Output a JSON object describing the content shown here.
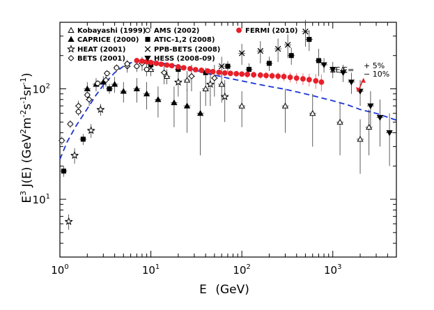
{
  "chart_data": {
    "type": "scatter",
    "x_scale": "log",
    "y_scale": "log",
    "xlim": [
      1,
      5000
    ],
    "ylim": [
      3,
      400
    ],
    "xlabel_main": "E",
    "xlabel_unit": "(GeV)",
    "ylabel_parts": [
      "E",
      "3",
      " J(E) (GeV",
      "2",
      "m",
      "-2",
      "s",
      "-1",
      "sr",
      "-1",
      ")"
    ],
    "x_ticks": [
      {
        "value": 1,
        "base": "10",
        "exp": "0"
      },
      {
        "value": 10,
        "base": "10",
        "exp": "1"
      },
      {
        "value": 100,
        "base": "10",
        "exp": "2"
      },
      {
        "value": 1000,
        "base": "10",
        "exp": "3"
      }
    ],
    "y_ticks": [
      {
        "value": 10,
        "base": "10",
        "exp": "1"
      },
      {
        "value": 100,
        "base": "10",
        "exp": "2"
      }
    ],
    "annotation": {
      "lhs": "ΔE/E=",
      "plus": "+ 5%",
      "minus": "− 10%"
    },
    "model_curve": {
      "name": "model",
      "color": "#1a33d6",
      "x": [
        1,
        1.2,
        1.5,
        2,
        2.5,
        3,
        4,
        5,
        6,
        8,
        10,
        15,
        20,
        30,
        50,
        70,
        100,
        150,
        200,
        300,
        500,
        700,
        1000,
        1500,
        2000,
        3000,
        5000
      ],
      "y": [
        23,
        33,
        46,
        66,
        88,
        108,
        140,
        160,
        172,
        180,
        178,
        168,
        160,
        148,
        133,
        125,
        118,
        110,
        105,
        99,
        90,
        84,
        78,
        71,
        65,
        60,
        52
      ]
    },
    "series": [
      {
        "name": "Kobayashi (1999)",
        "symbol": "triangle-open",
        "color": "#000000",
        "x": [
          10,
          15,
          25,
          40,
          60,
          100,
          300,
          600,
          1200,
          2000,
          2500
        ],
        "y": [
          150,
          130,
          120,
          100,
          110,
          70,
          70,
          60,
          50,
          35,
          45
        ],
        "err": [
          20,
          20,
          25,
          30,
          35,
          25,
          30,
          30,
          25,
          18,
          20
        ]
      },
      {
        "name": "CAPRICE (2000)",
        "symbol": "triangle-filled",
        "color": "#000000",
        "x": [
          2,
          2.5,
          3,
          4,
          5,
          7,
          9,
          12,
          18,
          25,
          35
        ],
        "y": [
          100,
          110,
          115,
          110,
          95,
          100,
          90,
          80,
          75,
          70,
          60
        ],
        "err": [
          15,
          15,
          15,
          18,
          20,
          25,
          25,
          25,
          30,
          30,
          35
        ]
      },
      {
        "name": "HEAT (2001)",
        "symbol": "star-open",
        "color": "#000000",
        "x": [
          1.25,
          1.45,
          2.2,
          2.8,
          20,
          45,
          65
        ],
        "y": [
          6.3,
          25,
          42,
          65,
          115,
          110,
          85
        ],
        "err": [
          1,
          4,
          6,
          8,
          30,
          40,
          35
        ]
      },
      {
        "name": "BETS (2001)",
        "symbol": "diamond-open",
        "color": "#000000",
        "x": [
          1.6,
          2.1,
          3.2,
          5.5,
          8,
          14,
          28,
          50
        ],
        "y": [
          70,
          80,
          120,
          160,
          170,
          140,
          130,
          125
        ],
        "err": [
          8,
          10,
          15,
          20,
          25,
          30,
          35,
          40
        ]
      },
      {
        "name": "AMS (2002)",
        "symbol": "circle-open",
        "color": "#000000",
        "x": [
          1.05,
          1.3,
          1.6,
          2,
          2.6,
          3.3,
          4.2,
          5.5,
          7,
          9
        ],
        "y": [
          34,
          48,
          62,
          88,
          112,
          138,
          155,
          168,
          160,
          150
        ],
        "err": [
          3,
          4,
          5,
          6,
          8,
          10,
          12,
          15,
          18,
          20
        ]
      },
      {
        "name": "ATIC-1,2 (2008)",
        "symbol": "square-filled",
        "color": "#000000",
        "x": [
          1.1,
          1.8,
          3.5,
          10,
          20,
          40,
          70,
          120,
          200,
          350,
          550,
          700
        ],
        "y": [
          18,
          35,
          100,
          165,
          150,
          140,
          160,
          150,
          170,
          200,
          280,
          180
        ],
        "err": [
          2,
          4,
          10,
          15,
          15,
          15,
          18,
          20,
          25,
          35,
          60,
          50
        ]
      },
      {
        "name": "PPB-BETS (2008)",
        "symbol": "cross",
        "color": "#000000",
        "x": [
          60,
          100,
          160,
          250,
          320,
          500
        ],
        "y": [
          160,
          210,
          220,
          230,
          250,
          330
        ],
        "err": [
          35,
          45,
          50,
          55,
          60,
          90
        ]
      },
      {
        "name": "HESS (2008-09)",
        "symbol": "triangle-down-filled",
        "color": "#000000",
        "x": [
          800,
          1000,
          1300,
          1600,
          2000,
          2600,
          3300,
          4200
        ],
        "y": [
          165,
          150,
          140,
          115,
          95,
          70,
          55,
          40
        ],
        "err": [
          25,
          25,
          25,
          25,
          25,
          25,
          25,
          20
        ]
      },
      {
        "name": "FERMI (2010)",
        "symbol": "circle-filled",
        "color": "#e8202a",
        "x": [
          7,
          8,
          9,
          10,
          11.5,
          13,
          15,
          17,
          20,
          23,
          27,
          31,
          36,
          42,
          48,
          56,
          65,
          75,
          87,
          100,
          115,
          135,
          160,
          185,
          215,
          250,
          290,
          340,
          400,
          470,
          550,
          650,
          750
        ],
        "y": [
          180,
          178,
          176,
          173,
          170,
          167,
          164,
          162,
          158,
          155,
          152,
          149,
          147,
          145,
          143,
          141,
          139,
          138,
          137,
          136,
          135,
          134,
          133,
          132,
          131,
          130,
          129,
          127,
          125,
          123,
          121,
          118,
          115
        ],
        "err": [
          10,
          9,
          9,
          9,
          8,
          8,
          8,
          8,
          8,
          8,
          8,
          8,
          8,
          8,
          8,
          8,
          8,
          8,
          8,
          8,
          9,
          9,
          9,
          10,
          10,
          11,
          12,
          13,
          14,
          15,
          16,
          18,
          20
        ]
      }
    ],
    "legend_order": [
      "Kobayashi (1999)",
      "CAPRICE (2000)",
      "HEAT (2001)",
      "BETS (2001)",
      "AMS (2002)",
      "ATIC-1,2 (2008)",
      "PPB-BETS (2008)",
      "HESS (2008-09)",
      "FERMI (2010)"
    ]
  }
}
